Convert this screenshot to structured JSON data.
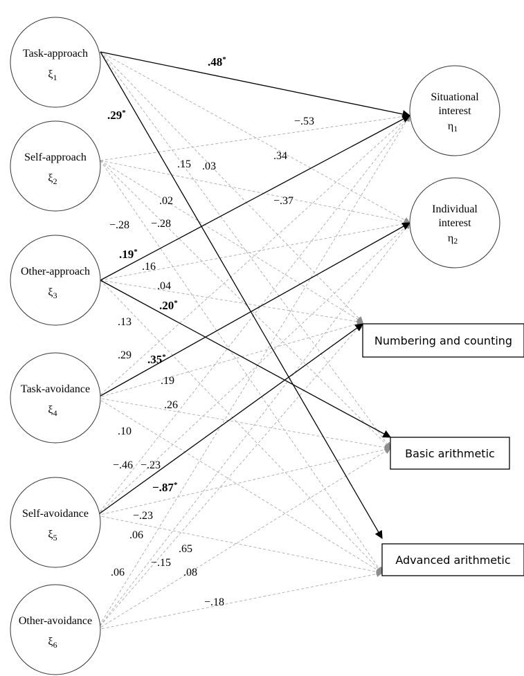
{
  "predictors": [
    {
      "label": "Task-approach",
      "symbol": "ξ",
      "sub": "1"
    },
    {
      "label": "Self-approach",
      "symbol": "ξ",
      "sub": "2"
    },
    {
      "label": "Other-approach",
      "symbol": "ξ",
      "sub": "3"
    },
    {
      "label": "Task-avoidance",
      "symbol": "ξ",
      "sub": "4"
    },
    {
      "label": "Self-avoidance",
      "symbol": "ξ",
      "sub": "5"
    },
    {
      "label": "Other-avoidance",
      "symbol": "ξ",
      "sub": "6"
    }
  ],
  "interests": [
    {
      "line1": "Situational",
      "line2": "interest",
      "symbol": "η",
      "sub": "1"
    },
    {
      "line1": "Individual",
      "line2": "interest",
      "symbol": "η",
      "sub": "2"
    }
  ],
  "outcomes": [
    {
      "label": "Numbering and counting"
    },
    {
      "label": "Basic arithmetic"
    },
    {
      "label": "Advanced arithmetic"
    }
  ],
  "coefficients": [
    {
      "text": ".48",
      "significant": true
    },
    {
      "text": ".29",
      "significant": true
    },
    {
      "text": "−.53",
      "significant": false
    },
    {
      "text": ".34",
      "significant": false
    },
    {
      "text": ".15",
      "significant": false
    },
    {
      "text": ".03",
      "significant": false
    },
    {
      "text": ".02",
      "significant": false
    },
    {
      "text": "−.37",
      "significant": false
    },
    {
      "text": "−.28",
      "significant": false
    },
    {
      "text": "−.28",
      "significant": false
    },
    {
      "text": ".19",
      "significant": true
    },
    {
      "text": ".16",
      "significant": false
    },
    {
      "text": ".04",
      "significant": false
    },
    {
      "text": ".20",
      "significant": true
    },
    {
      "text": ".13",
      "significant": false
    },
    {
      "text": ".29",
      "significant": false
    },
    {
      "text": ".35",
      "significant": true
    },
    {
      "text": ".19",
      "significant": false
    },
    {
      "text": ".26",
      "significant": false
    },
    {
      "text": ".10",
      "significant": false
    },
    {
      "text": "−.46",
      "significant": false
    },
    {
      "text": "−.23",
      "significant": false
    },
    {
      "text": "−.87",
      "significant": true
    },
    {
      "text": "−.23",
      "significant": false
    },
    {
      "text": ".06",
      "significant": false
    },
    {
      "text": ".65",
      "significant": false
    },
    {
      "text": ".06",
      "significant": false
    },
    {
      "text": "−.15",
      "significant": false
    },
    {
      "text": ".08",
      "significant": false
    },
    {
      "text": "−.18",
      "significant": false
    }
  ],
  "significance_marker": "*",
  "colors": {
    "solid_path": "#000000",
    "dashed_path": "#b3b3b3",
    "node_stroke": "#333333"
  }
}
